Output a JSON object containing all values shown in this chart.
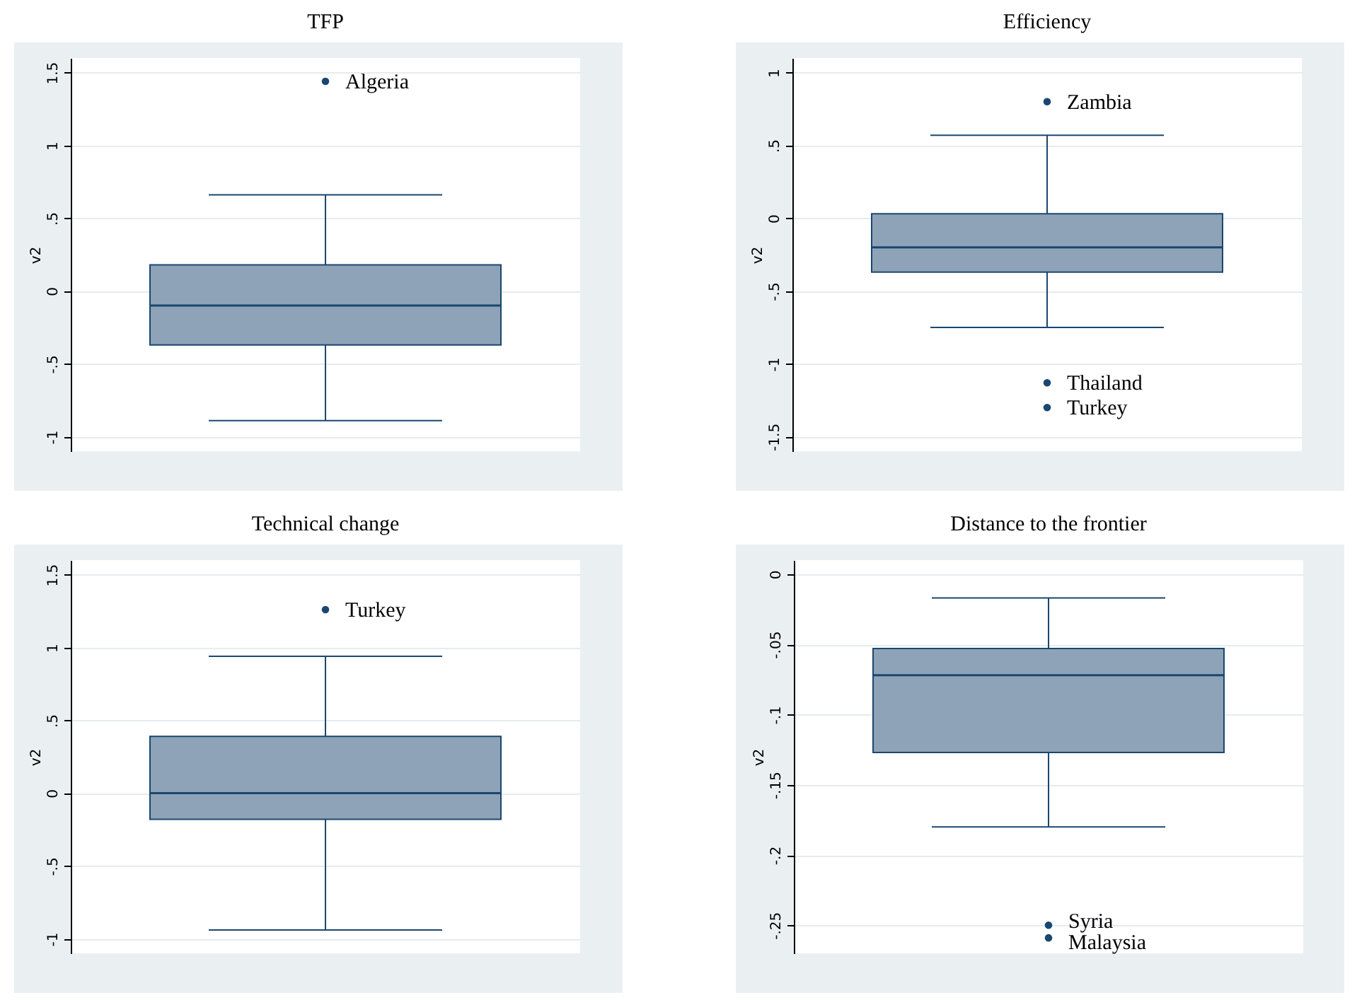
{
  "chart_data": [
    {
      "type": "box",
      "title": "TFP",
      "ylabel": "v2",
      "categories": [
        null
      ],
      "color": "#8ea3b7",
      "boxes": [
        {
          "low": -0.89,
          "q1": -0.37,
          "median": -0.1,
          "q3": 0.18,
          "high": 0.66,
          "outliers": [
            1.44
          ]
        }
      ],
      "annotations": [
        "Algeria"
      ],
      "ylim": [
        -1.1,
        1.6
      ],
      "yticks": [
        -1,
        {
          "value": -0.5,
          "label": "-.5"
        },
        0,
        {
          "value": 0.5,
          "label": ".5"
        },
        1,
        1.5
      ],
      "grid": "y",
      "tick_labels": "y"
    },
    {
      "type": "box",
      "title": "Efficiency",
      "ylabel": "v2",
      "categories": [
        null
      ],
      "color": "#8ea3b7",
      "boxes": [
        {
          "low": -0.75,
          "q1": -0.37,
          "median": -0.2,
          "q3": 0.03,
          "high": 0.57,
          "outliers": [
            0.8,
            -1.13,
            -1.3
          ]
        }
      ],
      "annotations": [
        "Zambia",
        "Thailand",
        "Turkey"
      ],
      "ylim": [
        -1.6,
        1.1
      ],
      "yticks": [
        -1.5,
        -1,
        {
          "value": -0.5,
          "label": "-.5"
        },
        0,
        {
          "value": 0.5,
          "label": ".5"
        },
        1
      ],
      "grid": "y",
      "tick_labels": "y"
    },
    {
      "type": "box",
      "title": "Technical change",
      "ylabel": "v2",
      "categories": [
        null
      ],
      "color": "#8ea3b7",
      "boxes": [
        {
          "low": -0.94,
          "q1": -0.18,
          "median": 0,
          "q3": 0.39,
          "high": 0.94,
          "outliers": [
            1.26
          ]
        }
      ],
      "annotations": [
        "Turkey"
      ],
      "ylim": [
        -1.1,
        1.6
      ],
      "yticks": [
        -1,
        {
          "value": -0.5,
          "label": "-.5"
        },
        0,
        {
          "value": 0.5,
          "label": ".5"
        },
        1,
        1.5
      ],
      "grid": "y",
      "tick_labels": "y"
    },
    {
      "type": "box",
      "title": "Distance to the frontier",
      "ylabel": "v2",
      "categories": [
        null
      ],
      "color": "#8ea3b7",
      "boxes": [
        {
          "low": -0.18,
          "q1": -0.127,
          "median": -0.072,
          "q3": -0.053,
          "high": -0.017,
          "outliers": [
            -0.25,
            -0.259
          ]
        }
      ],
      "annotations": [
        "Syria",
        "Malaysia"
      ],
      "ylim": [
        -0.27,
        0.01
      ],
      "yticks": [
        {
          "value": -0.25,
          "label": "-.25"
        },
        {
          "value": -0.2,
          "label": "-.2"
        },
        {
          "value": -0.15,
          "label": "-.15"
        },
        {
          "value": -0.1,
          "label": "-.1"
        },
        {
          "value": -0.05,
          "label": "-.05"
        },
        0
      ],
      "grid": "y",
      "tick_labels": "y"
    }
  ]
}
